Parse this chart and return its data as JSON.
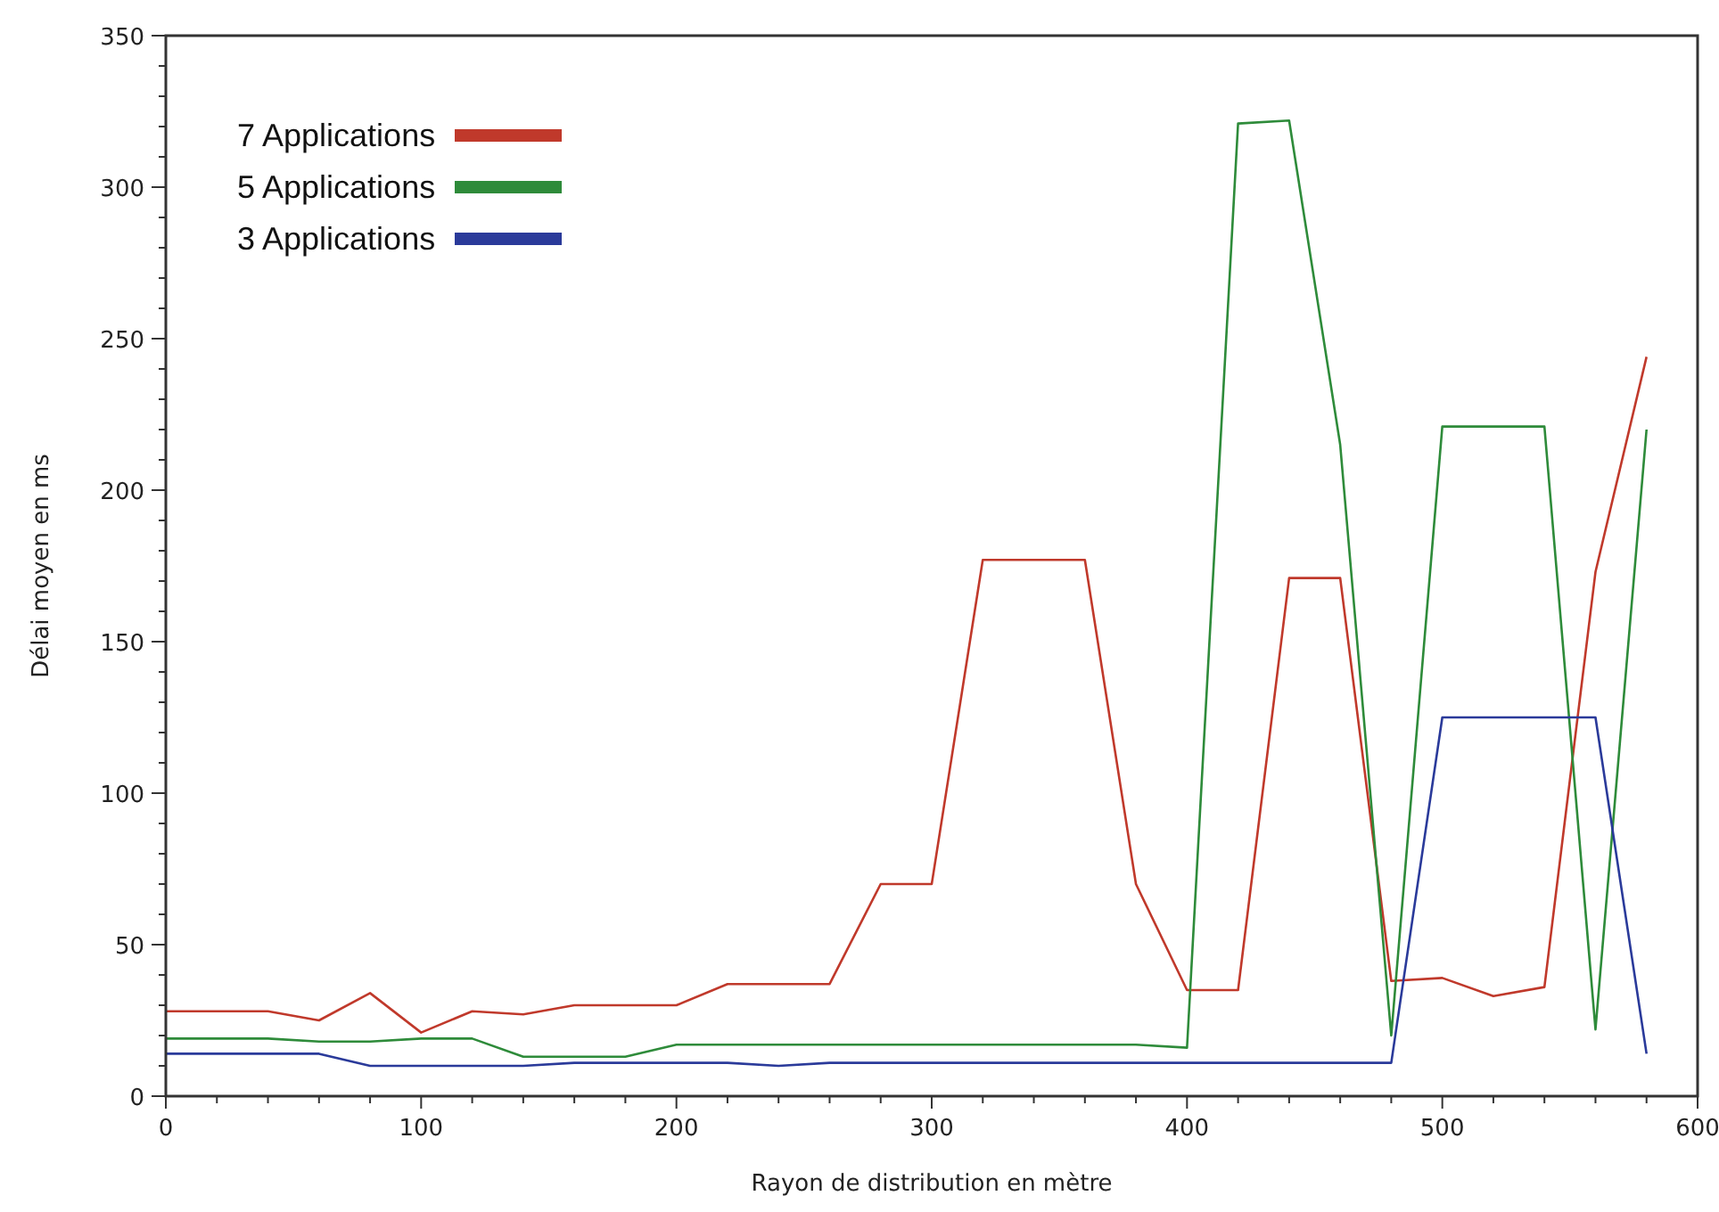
{
  "chart_data": {
    "type": "line",
    "xlabel": "Rayon de distribution en mètre",
    "ylabel": "Délai moyen en ms",
    "x": [
      0,
      20,
      40,
      60,
      80,
      100,
      120,
      140,
      160,
      180,
      200,
      220,
      240,
      260,
      280,
      300,
      320,
      340,
      360,
      380,
      400,
      420,
      440,
      460,
      480,
      500,
      520,
      540,
      560,
      580
    ],
    "series": [
      {
        "name": "7 Applications",
        "color": "#c0392b",
        "values": [
          28,
          28,
          28,
          25,
          34,
          21,
          28,
          27,
          30,
          30,
          30,
          37,
          37,
          37,
          70,
          70,
          177,
          177,
          177,
          70,
          35,
          35,
          171,
          171,
          38,
          39,
          33,
          36,
          173,
          244
        ]
      },
      {
        "name": "5 Applications",
        "color": "#2e8b3a",
        "values": [
          19,
          19,
          19,
          18,
          18,
          19,
          19,
          13,
          13,
          13,
          17,
          17,
          17,
          17,
          17,
          17,
          17,
          17,
          17,
          17,
          16,
          321,
          322,
          215,
          20,
          221,
          221,
          221,
          22,
          220
        ]
      },
      {
        "name": "3 Applications",
        "color": "#2a3a9a",
        "values": [
          14,
          14,
          14,
          14,
          10,
          10,
          10,
          10,
          11,
          11,
          11,
          11,
          10,
          11,
          11,
          11,
          11,
          11,
          11,
          11,
          11,
          11,
          11,
          11,
          11,
          125,
          125,
          125,
          125,
          14
        ]
      }
    ],
    "xlim": [
      0,
      600
    ],
    "xticks": [
      0,
      {
        "value": 20,
        "label": null
      },
      {
        "value": 40,
        "label": null
      },
      {
        "value": 60,
        "label": null
      },
      {
        "value": 80,
        "label": null
      },
      100,
      {
        "value": 120,
        "label": null
      },
      {
        "value": 140,
        "label": null
      },
      {
        "value": 160,
        "label": null
      },
      {
        "value": 180,
        "label": null
      },
      200,
      {
        "value": 220,
        "label": null
      },
      {
        "value": 240,
        "label": null
      },
      {
        "value": 260,
        "label": null
      },
      {
        "value": 280,
        "label": null
      },
      300,
      {
        "value": 320,
        "label": null
      },
      {
        "value": 340,
        "label": null
      },
      {
        "value": 360,
        "label": null
      },
      {
        "value": 380,
        "label": null
      },
      400,
      {
        "value": 420,
        "label": null
      },
      {
        "value": 440,
        "label": null
      },
      {
        "value": 460,
        "label": null
      },
      {
        "value": 480,
        "label": null
      },
      500,
      {
        "value": 520,
        "label": null
      },
      {
        "value": 540,
        "label": null
      },
      {
        "value": 560,
        "label": null
      },
      {
        "value": 580,
        "label": null
      },
      600
    ],
    "ylim": [
      0,
      350
    ],
    "yticks": [
      0,
      {
        "value": 10,
        "label": null
      },
      {
        "value": 20,
        "label": null
      },
      {
        "value": 30,
        "label": null
      },
      {
        "value": 40,
        "label": null
      },
      50,
      {
        "value": 60,
        "label": null
      },
      {
        "value": 70,
        "label": null
      },
      {
        "value": 80,
        "label": null
      },
      {
        "value": 90,
        "label": null
      },
      100,
      {
        "value": 110,
        "label": null
      },
      {
        "value": 120,
        "label": null
      },
      {
        "value": 130,
        "label": null
      },
      {
        "value": 140,
        "label": null
      },
      150,
      {
        "value": 160,
        "label": null
      },
      {
        "value": 170,
        "label": null
      },
      {
        "value": 180,
        "label": null
      },
      {
        "value": 190,
        "label": null
      },
      200,
      {
        "value": 210,
        "label": null
      },
      {
        "value": 220,
        "label": null
      },
      {
        "value": 230,
        "label": null
      },
      {
        "value": 240,
        "label": null
      },
      250,
      {
        "value": 260,
        "label": null
      },
      {
        "value": 270,
        "label": null
      },
      {
        "value": 280,
        "label": null
      },
      {
        "value": 290,
        "label": null
      },
      300,
      {
        "value": 310,
        "label": null
      },
      {
        "value": 320,
        "label": null
      },
      {
        "value": 330,
        "label": null
      },
      {
        "value": 340,
        "label": null
      },
      350
    ],
    "grid": false,
    "legend": "top left",
    "marker": "none",
    "line_style": "solid"
  }
}
